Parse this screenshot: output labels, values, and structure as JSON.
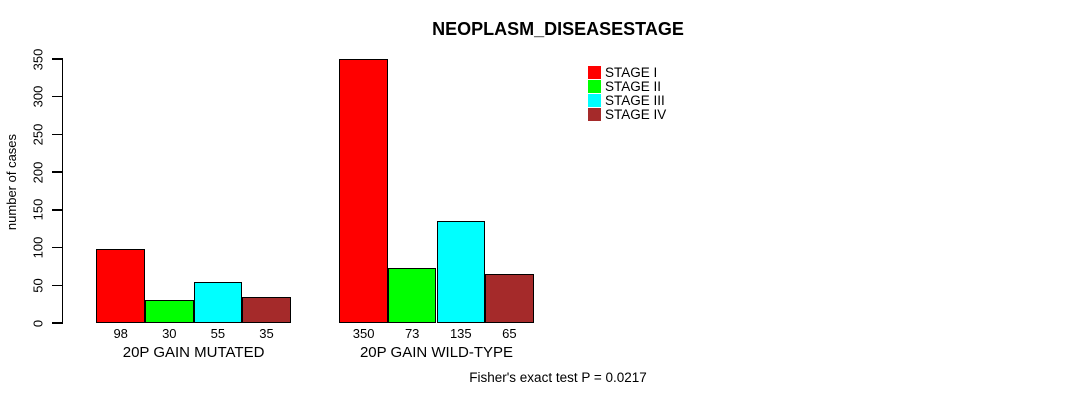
{
  "title": "NEOPLASM_DISEASESTAGE",
  "ylabel": "number of cases",
  "footnote": "Fisher's exact test P = 0.0217",
  "legend": {
    "items": [
      {
        "label": "STAGE I",
        "color": "#FF0000"
      },
      {
        "label": "STAGE II",
        "color": "#00FF00"
      },
      {
        "label": "STAGE III",
        "color": "#00FFFF"
      },
      {
        "label": "STAGE IV",
        "color": "#A52A2A"
      }
    ]
  },
  "chart_data": {
    "type": "bar",
    "title": "NEOPLASM_DISEASESTAGE",
    "xlabel": "",
    "ylabel": "number of cases",
    "ylim": [
      0,
      350
    ],
    "yticks": [
      0,
      50,
      100,
      150,
      200,
      250,
      300,
      350
    ],
    "grid": false,
    "legend_position": "top-right",
    "bar_border_color": "#000000",
    "categories": [
      "20P GAIN MUTATED",
      "20P GAIN WILD-TYPE"
    ],
    "series": [
      {
        "name": "STAGE I",
        "color": "#FF0000",
        "values": [
          98,
          350
        ]
      },
      {
        "name": "STAGE II",
        "color": "#00FF00",
        "values": [
          30,
          73
        ]
      },
      {
        "name": "STAGE III",
        "color": "#00FFFF",
        "values": [
          55,
          135
        ]
      },
      {
        "name": "STAGE IV",
        "color": "#A52A2A",
        "values": [
          35,
          65
        ]
      }
    ],
    "annotation": "Fisher's exact test P = 0.0217"
  }
}
